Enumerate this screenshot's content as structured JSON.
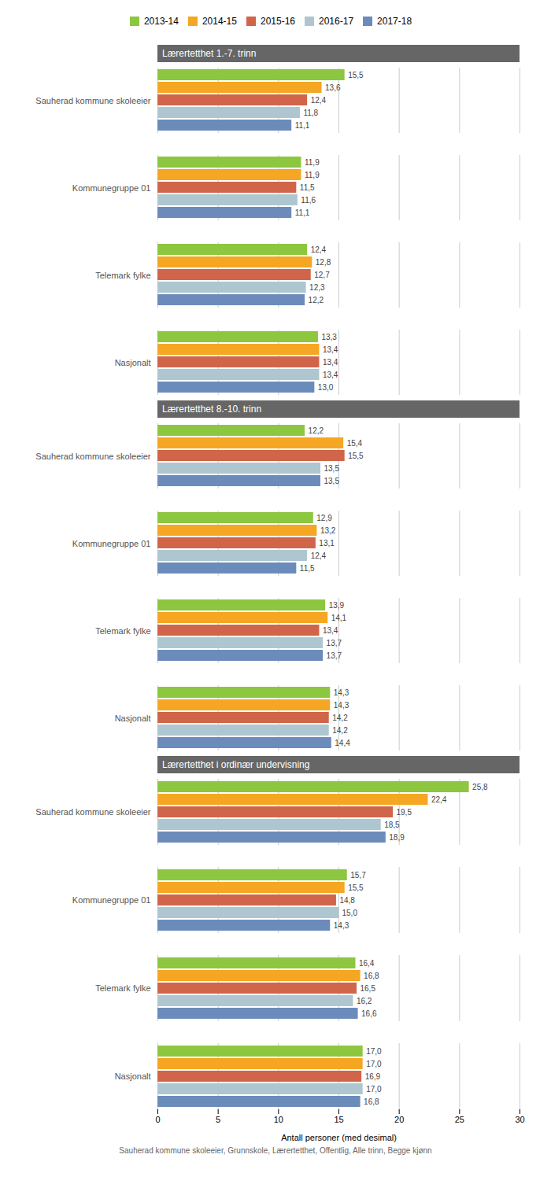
{
  "chart_data": [
    {
      "type": "bar",
      "title": "Lærertetthet 1.-7. trinn",
      "orientation": "horizontal",
      "categories": [
        "Sauherad kommune skoleeier",
        "Kommunegruppe 01",
        "Telemark fylke",
        "Nasjonalt"
      ],
      "series": [
        {
          "name": "2013-14",
          "color": "#8dc63f",
          "values": [
            15.5,
            11.9,
            12.4,
            13.3
          ],
          "value_labels": [
            "15,5",
            "11,9",
            "12,4",
            "13,3"
          ]
        },
        {
          "name": "2014-15",
          "color": "#f5a623",
          "values": [
            13.6,
            11.9,
            12.8,
            13.4
          ],
          "value_labels": [
            "13,6",
            "11,9",
            "12,8",
            "13,4"
          ]
        },
        {
          "name": "2015-16",
          "color": "#d0654a",
          "values": [
            12.4,
            11.5,
            12.7,
            13.4
          ],
          "value_labels": [
            "12,4",
            "11,5",
            "12,7",
            "13,4"
          ]
        },
        {
          "name": "2016-17",
          "color": "#aec6cf",
          "values": [
            11.8,
            11.6,
            12.3,
            13.4
          ],
          "value_labels": [
            "11,8",
            "11,6",
            "12,3",
            "13,4"
          ]
        },
        {
          "name": "2017-18",
          "color": "#6b8cba",
          "values": [
            11.1,
            11.1,
            12.2,
            13.0
          ],
          "value_labels": [
            "11,1",
            "11,1",
            "12,2",
            "13,0"
          ]
        }
      ],
      "xlim": [
        0,
        30
      ],
      "xticks": [
        0,
        5,
        10,
        15,
        20,
        25,
        30
      ],
      "grid": true,
      "data_labels": true,
      "tick_labels": "y",
      "legend": "upper center"
    },
    {
      "type": "bar",
      "title": "Lærertetthet 8.-10. trinn",
      "orientation": "horizontal",
      "categories": [
        "Sauherad kommune skoleeier",
        "Kommunegruppe 01",
        "Telemark fylke",
        "Nasjonalt"
      ],
      "series": [
        {
          "name": "2013-14",
          "color": "#8dc63f",
          "values": [
            12.2,
            12.9,
            13.9,
            14.3
          ],
          "value_labels": [
            "12,2",
            "12,9",
            "13,9",
            "14,3"
          ]
        },
        {
          "name": "2014-15",
          "color": "#f5a623",
          "values": [
            15.4,
            13.2,
            14.1,
            14.3
          ],
          "value_labels": [
            "15,4",
            "13,2",
            "14,1",
            "14,3"
          ]
        },
        {
          "name": "2015-16",
          "color": "#d0654a",
          "values": [
            15.5,
            13.1,
            13.4,
            14.2
          ],
          "value_labels": [
            "15,5",
            "13,1",
            "13,4",
            "14,2"
          ]
        },
        {
          "name": "2016-17",
          "color": "#aec6cf",
          "values": [
            13.5,
            12.4,
            13.7,
            14.2
          ],
          "value_labels": [
            "13,5",
            "12,4",
            "13,7",
            "14,2"
          ]
        },
        {
          "name": "2017-18",
          "color": "#6b8cba",
          "values": [
            13.5,
            11.5,
            13.7,
            14.4
          ],
          "value_labels": [
            "13,5",
            "11,5",
            "13,7",
            "14,4"
          ]
        }
      ],
      "xlim": [
        0,
        30
      ],
      "xticks": [
        0,
        5,
        10,
        15,
        20,
        25,
        30
      ],
      "grid": true,
      "data_labels": true,
      "tick_labels": "y"
    },
    {
      "type": "bar",
      "title": "Lærertetthet i ordinær undervisning",
      "orientation": "horizontal",
      "categories": [
        "Sauherad kommune skoleeier",
        "Kommunegruppe 01",
        "Telemark fylke",
        "Nasjonalt"
      ],
      "series": [
        {
          "name": "2013-14",
          "color": "#8dc63f",
          "values": [
            25.8,
            15.7,
            16.4,
            17.0
          ],
          "value_labels": [
            "25,8",
            "15,7",
            "16,4",
            "17,0"
          ]
        },
        {
          "name": "2014-15",
          "color": "#f5a623",
          "values": [
            22.4,
            15.5,
            16.8,
            17.0
          ],
          "value_labels": [
            "22,4",
            "15,5",
            "16,8",
            "17,0"
          ]
        },
        {
          "name": "2015-16",
          "color": "#d0654a",
          "values": [
            19.5,
            14.8,
            16.5,
            16.9
          ],
          "value_labels": [
            "19,5",
            "14,8",
            "16,5",
            "16,9"
          ]
        },
        {
          "name": "2016-17",
          "color": "#aec6cf",
          "values": [
            18.5,
            15.0,
            16.2,
            17.0
          ],
          "value_labels": [
            "18,5",
            "15,0",
            "16,2",
            "17,0"
          ]
        },
        {
          "name": "2017-18",
          "color": "#6b8cba",
          "values": [
            18.9,
            14.3,
            16.6,
            16.8
          ],
          "value_labels": [
            "18,9",
            "14,3",
            "16,6",
            "16,8"
          ]
        }
      ],
      "xlim": [
        0,
        30
      ],
      "xticks": [
        0,
        5,
        10,
        15,
        20,
        25,
        30
      ],
      "grid": true,
      "data_labels": true,
      "tick_labels": true,
      "xlabel": "Antall personer (med desimal)",
      "annotations": [
        "Sauherad kommune skoleeier, Grunnskole, Lærertetthet, Offentlig, Alle trinn, Begge kjønn"
      ]
    }
  ]
}
